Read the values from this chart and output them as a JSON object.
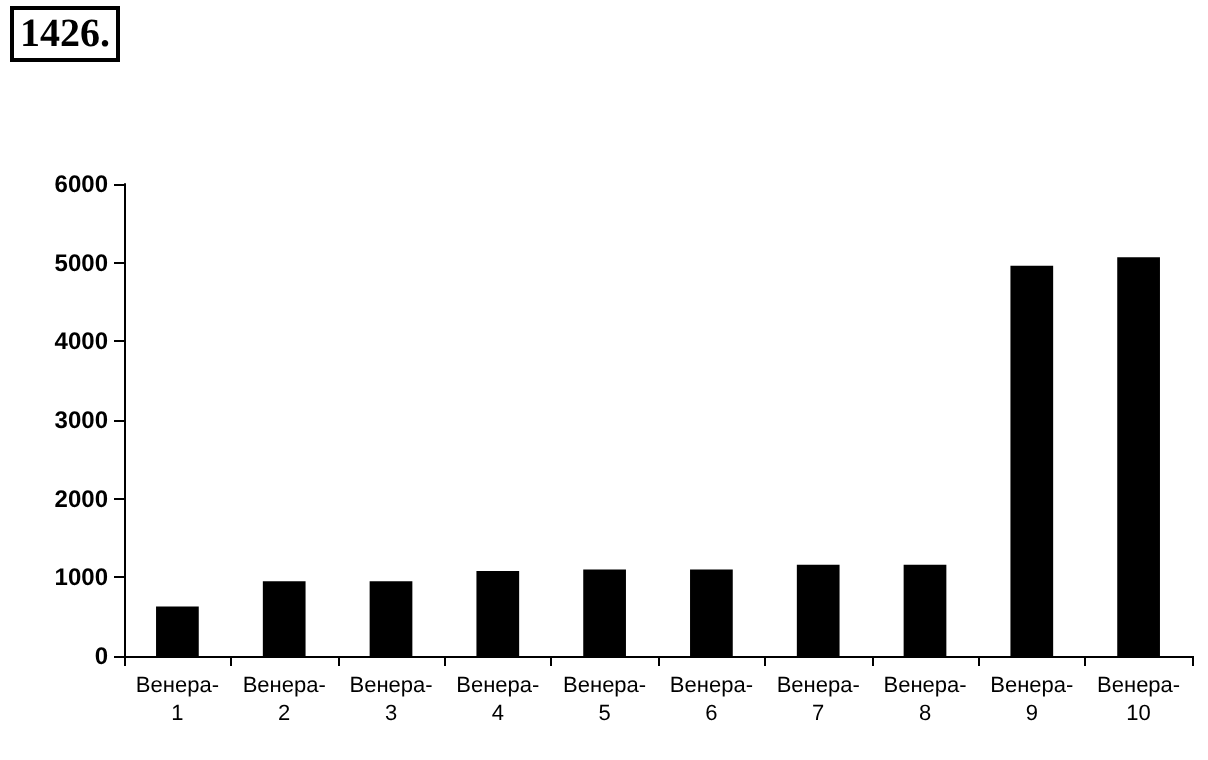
{
  "chart_data": {
    "type": "bar",
    "title": "1426.",
    "categories": [
      "Венера-1",
      "Венера-2",
      "Венера-3",
      "Венера-4",
      "Венера-5",
      "Венера-6",
      "Венера-7",
      "Венера-8",
      "Венера-9",
      "Венера-10"
    ],
    "values": [
      630,
      950,
      950,
      1080,
      1100,
      1100,
      1160,
      1160,
      4960,
      5070
    ],
    "color": "#000000",
    "ylim": [
      0,
      6000
    ],
    "yticks": [
      0,
      1000,
      2000,
      3000,
      4000,
      5000,
      6000
    ],
    "grid": false
  }
}
